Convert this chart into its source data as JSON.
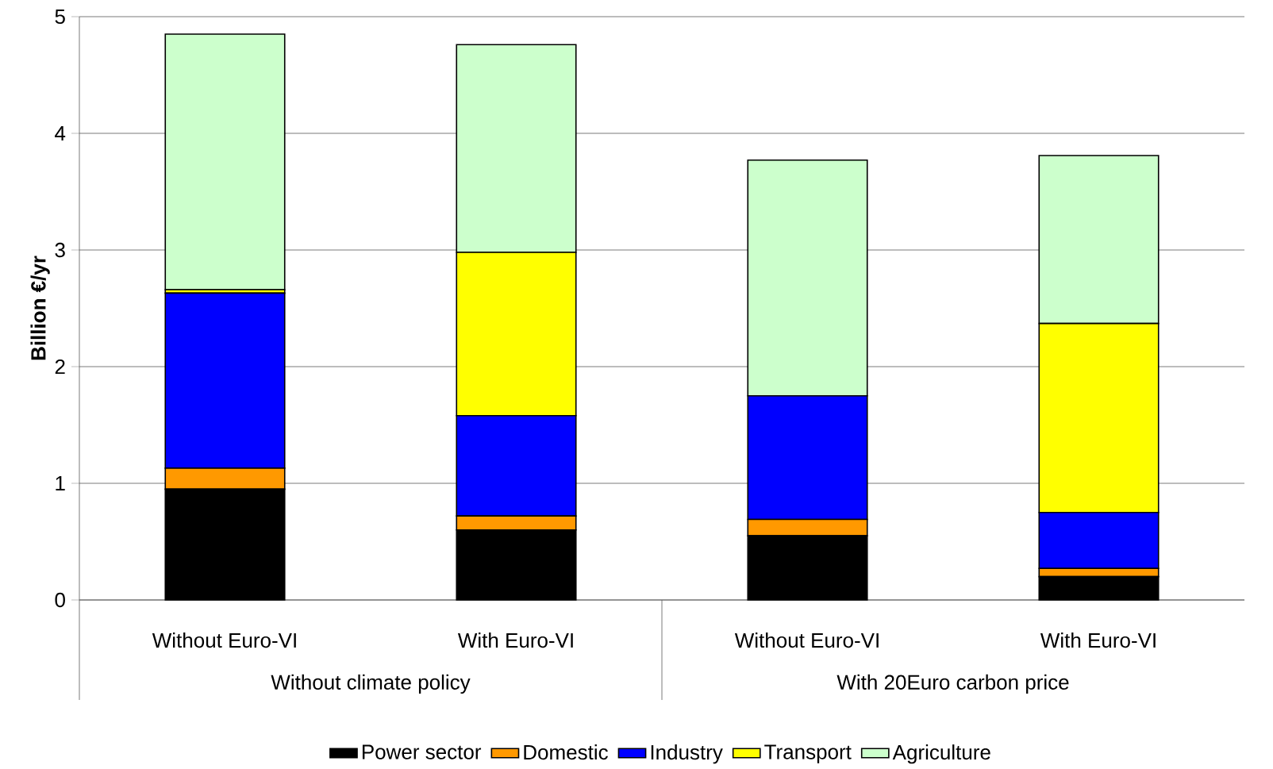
{
  "chart_data": {
    "type": "bar",
    "stacked": true,
    "ylabel": "Billion €/yr",
    "categories": [
      "Without Euro-VI",
      "With Euro-VI",
      "Without Euro-VI",
      "With Euro-VI"
    ],
    "series": [
      {
        "name": "Power sector",
        "color": "#000000",
        "values": [
          0.95,
          0.6,
          0.55,
          0.2
        ]
      },
      {
        "name": "Domestic",
        "color": "#ff9900",
        "values": [
          0.18,
          0.12,
          0.14,
          0.07
        ]
      },
      {
        "name": "Industry",
        "color": "#0000ff",
        "values": [
          1.5,
          0.86,
          1.06,
          0.48
        ]
      },
      {
        "name": "Transport",
        "color": "#ffff00",
        "values": [
          0.03,
          1.4,
          0,
          1.62
        ]
      },
      {
        "name": "Agriculture",
        "color": "#ccffcc",
        "values": [
          2.19,
          1.78,
          2.02,
          1.44
        ]
      }
    ],
    "ylim": [
      0,
      5
    ],
    "yticks": [
      0,
      1,
      2,
      3,
      4,
      5
    ],
    "grid": "y",
    "legend": "bottom",
    "annotations": [
      "Without climate policy",
      "With 20Euro carbon price"
    ]
  }
}
